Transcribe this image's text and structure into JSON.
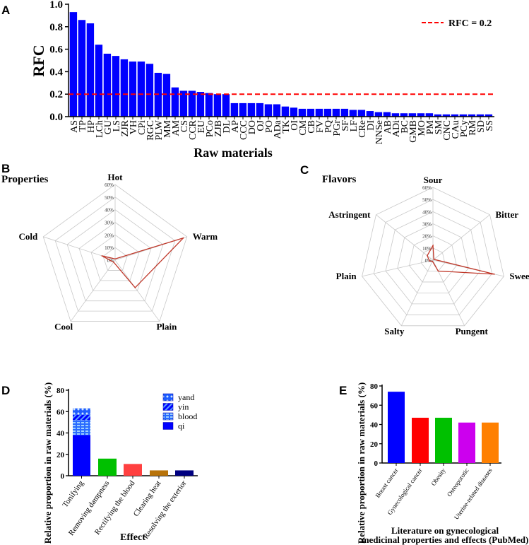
{
  "panel_letters": {
    "a": "A",
    "b": "B",
    "c": "C",
    "d": "D",
    "e": "E"
  },
  "chart_data": [
    {
      "type": "bar",
      "panel": "A",
      "title": "",
      "xlabel": "Raw materials",
      "ylabel": "RFC",
      "ylim": [
        0,
        1.0
      ],
      "yticks": [
        "0.0",
        "0.2",
        "0.4",
        "0.6",
        "0.8",
        "1.0"
      ],
      "color": "#0000ff",
      "reference_line": {
        "value": 0.2,
        "label": "RFC = 0.2",
        "color": "#ff0000",
        "legend": "top-right"
      },
      "categories": [
        "AS",
        "TP",
        "HP",
        "LCh",
        "GU",
        "LS",
        "ZJR",
        "VH",
        "CPi",
        "RGC",
        "PLW",
        "MM",
        "AM",
        "CS",
        "CCR",
        "EU",
        "PCo",
        "ZJB",
        "DL",
        "AP",
        "CCC",
        "DO",
        "OJ",
        "PO",
        "ADa",
        "TK",
        "OI",
        "CM",
        "CB",
        "FV",
        "PQ",
        "PGr",
        "SF",
        "LF",
        "CRe",
        "DI",
        "NNSe",
        "AB",
        "ADi",
        "BC",
        "GMB",
        "MO",
        "PM",
        "SM",
        "CNC",
        "CAu",
        "PCy",
        "RM",
        "SD",
        "SS"
      ],
      "values": [
        0.93,
        0.86,
        0.83,
        0.64,
        0.56,
        0.54,
        0.51,
        0.49,
        0.49,
        0.47,
        0.39,
        0.38,
        0.26,
        0.23,
        0.23,
        0.22,
        0.21,
        0.2,
        0.2,
        0.12,
        0.12,
        0.12,
        0.12,
        0.11,
        0.11,
        0.09,
        0.08,
        0.07,
        0.07,
        0.07,
        0.07,
        0.07,
        0.07,
        0.06,
        0.06,
        0.05,
        0.04,
        0.04,
        0.03,
        0.03,
        0.03,
        0.03,
        0.03,
        0.02,
        0.02,
        0.02,
        0.02,
        0.02,
        0.02,
        0.02
      ]
    },
    {
      "type": "radar",
      "panel": "B",
      "title": "Properties",
      "axes": [
        "Hot",
        "Warm",
        "Plain",
        "Cool",
        "Cold"
      ],
      "values": [
        1,
        57,
        27,
        2,
        11
      ],
      "unit": "%",
      "rlim": [
        0,
        60
      ],
      "rticks": [
        "0%",
        "10%",
        "20%",
        "30%",
        "40%",
        "50%",
        "60%"
      ],
      "color": "#c0392b"
    },
    {
      "type": "radar",
      "panel": "C",
      "title": "Flavors",
      "axes": [
        "Sour",
        "Bitter",
        "Sweet",
        "Pungent",
        "Salty",
        "Plain",
        "Astringent"
      ],
      "values": [
        12,
        1,
        52,
        10,
        1,
        3,
        6
      ],
      "unit": "%",
      "rlim": [
        0,
        60
      ],
      "rticks": [
        "0%",
        "10%",
        "20%",
        "30%",
        "40%",
        "50%",
        "60%"
      ],
      "color": "#c0392b"
    },
    {
      "type": "bar",
      "panel": "D",
      "xlabel": "Effect",
      "ylabel": "Relative proportion in raw materials (%)",
      "ylim": [
        0,
        80
      ],
      "yticks": [
        "0",
        "20",
        "40",
        "60",
        "80"
      ],
      "categories": [
        "Tonifying",
        "Removing dampness",
        "Rectifying the blood",
        "Clearing heat",
        "Resolving the exterior"
      ],
      "values": [
        63,
        16,
        11,
        5,
        5
      ],
      "colors": [
        "#0000ff",
        "#00c000",
        "#ff4040",
        "#b8730a",
        "#000080"
      ],
      "stack": {
        "category": "Tonifying",
        "legend": "top-right",
        "series": [
          {
            "name": "qi",
            "value": 38
          },
          {
            "name": "blood",
            "value": 14
          },
          {
            "name": "yin",
            "value": 5
          },
          {
            "name": "yand",
            "value": 6
          }
        ]
      }
    },
    {
      "type": "bar",
      "panel": "E",
      "xlabel": "Literature on gynecological",
      "xlabel2": "medicinal properties and effects (PubMed)",
      "ylabel": "Relative proportion in raw materials (%)",
      "ylim": [
        0,
        80
      ],
      "yticks": [
        "0",
        "20",
        "40",
        "60",
        "80"
      ],
      "categories": [
        "Breast cancer",
        "Gynecological cancer",
        "Obesity",
        "Osteoporotic",
        "Uterine-related diseases"
      ],
      "values": [
        74,
        47,
        47,
        42,
        42
      ],
      "colors": [
        "#0000ff",
        "#ff0000",
        "#00c000",
        "#cc00ee",
        "#ff8000"
      ]
    }
  ]
}
